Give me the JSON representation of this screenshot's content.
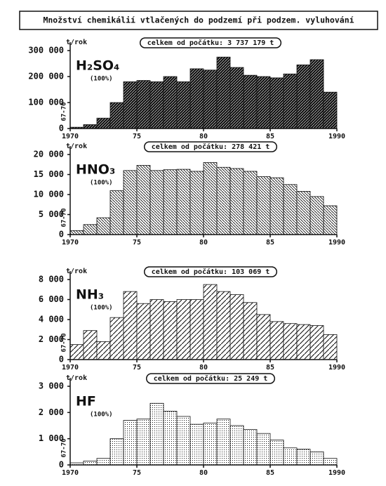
{
  "title": "Množství chemikálií vtlačených do podzemí při podzem. vyluhování",
  "chart_data": [
    {
      "type": "histogram",
      "title": "H₂SO₄",
      "subtitle": "(100%)",
      "ylabel": "t/rok",
      "annotation": "celkem od počátku: 3 737 179 t",
      "first_bar_label": "67-70",
      "color": "#111111",
      "pattern": "dense",
      "bins": [
        1970,
        1971,
        1972,
        1973,
        1974,
        1975,
        1976,
        1977,
        1978,
        1979,
        1980,
        1981,
        1982,
        1983,
        1984,
        1985,
        1986,
        1987,
        1988,
        1989,
        1990
      ],
      "values": [
        5000,
        15000,
        40000,
        100000,
        180000,
        185000,
        180000,
        200000,
        180000,
        230000,
        225000,
        275000,
        235000,
        205000,
        200000,
        195000,
        210000,
        245000,
        265000,
        140000
      ],
      "xlim": [
        1970,
        1990
      ],
      "xticks": [
        1970,
        {
          "value": 1975,
          "label": "75"
        },
        {
          "value": 1980,
          "label": "80"
        },
        {
          "value": 1985,
          "label": "85"
        },
        1990
      ],
      "ylim": [
        0,
        300000
      ],
      "yticks": [
        0,
        {
          "value": 100000,
          "label": "100 000"
        },
        {
          "value": 200000,
          "label": "200 000"
        },
        {
          "value": 300000,
          "label": "300 000"
        }
      ]
    },
    {
      "type": "histogram",
      "title": "HNO₃",
      "subtitle": "(100%)",
      "ylabel": "t/rok",
      "annotation": "celkem od počátku: 278 421 t",
      "first_bar_label": "67-70",
      "color": "#111111",
      "pattern": "hatch",
      "bins": [
        1970,
        1971,
        1972,
        1973,
        1974,
        1975,
        1976,
        1977,
        1978,
        1979,
        1980,
        1981,
        1982,
        1983,
        1984,
        1985,
        1986,
        1987,
        1988,
        1989,
        1990
      ],
      "values": [
        1000,
        2500,
        4200,
        11000,
        16000,
        17300,
        16000,
        16200,
        16300,
        15800,
        18000,
        16800,
        16500,
        15800,
        14500,
        14200,
        12500,
        10800,
        9500,
        7200
      ],
      "xlim": [
        1970,
        1990
      ],
      "xticks": [
        1970,
        {
          "value": 1975,
          "label": "75"
        },
        {
          "value": 1980,
          "label": "80"
        },
        {
          "value": 1985,
          "label": "85"
        },
        1990
      ],
      "ylim": [
        0,
        20000
      ],
      "yticks": [
        0,
        {
          "value": 5000,
          "label": "5 000"
        },
        {
          "value": 10000,
          "label": "10 000"
        },
        {
          "value": 15000,
          "label": "15 000"
        },
        {
          "value": 20000,
          "label": "20 000"
        }
      ]
    },
    {
      "type": "histogram",
      "title": "NH₃",
      "subtitle": "(100%)",
      "ylabel": "t/rok",
      "annotation": "celkem od počátku: 103 069 t",
      "first_bar_label": "67-70",
      "color": "#111111",
      "pattern": "wide-hatch",
      "bins": [
        1970,
        1971,
        1972,
        1973,
        1974,
        1975,
        1976,
        1977,
        1978,
        1979,
        1980,
        1981,
        1982,
        1983,
        1984,
        1985,
        1986,
        1987,
        1988,
        1989,
        1990
      ],
      "values": [
        1500,
        2900,
        1800,
        4200,
        6800,
        5600,
        6000,
        5800,
        6000,
        6000,
        7500,
        6800,
        6500,
        5700,
        4500,
        3800,
        3600,
        3500,
        3400,
        2500
      ],
      "xlim": [
        1970,
        1990
      ],
      "xticks": [
        1970,
        {
          "value": 1975,
          "label": "75"
        },
        {
          "value": 1980,
          "label": "80"
        },
        {
          "value": 1985,
          "label": "85"
        },
        1990
      ],
      "ylim": [
        0,
        8000
      ],
      "yticks": [
        0,
        {
          "value": 2000,
          "label": "2 000"
        },
        {
          "value": 4000,
          "label": "4 000"
        },
        {
          "value": 6000,
          "label": "6 000"
        },
        {
          "value": 8000,
          "label": "8 000"
        }
      ]
    },
    {
      "type": "histogram",
      "title": "HF",
      "subtitle": "(100%)",
      "ylabel": "t/rok",
      "annotation": "celkem od počátku: 25 249 t",
      "first_bar_label": "67-70",
      "color": "#111111",
      "pattern": "dots",
      "bins": [
        1970,
        1971,
        1972,
        1973,
        1974,
        1975,
        1976,
        1977,
        1978,
        1979,
        1980,
        1981,
        1982,
        1983,
        1984,
        1985,
        1986,
        1987,
        1988,
        1989,
        1990
      ],
      "values": [
        80,
        150,
        250,
        1000,
        1700,
        1750,
        2350,
        2050,
        1850,
        1550,
        1600,
        1750,
        1500,
        1350,
        1200,
        950,
        650,
        600,
        500,
        250
      ],
      "xlim": [
        1970,
        1990
      ],
      "xticks": [
        1970,
        {
          "value": 1975,
          "label": "75"
        },
        {
          "value": 1980,
          "label": "80"
        },
        {
          "value": 1985,
          "label": "85"
        },
        1990
      ],
      "ylim": [
        0,
        3000
      ],
      "yticks": [
        0,
        {
          "value": 1000,
          "label": "1 000"
        },
        {
          "value": 2000,
          "label": "2 000"
        },
        {
          "value": 3000,
          "label": "3 000"
        }
      ]
    }
  ]
}
